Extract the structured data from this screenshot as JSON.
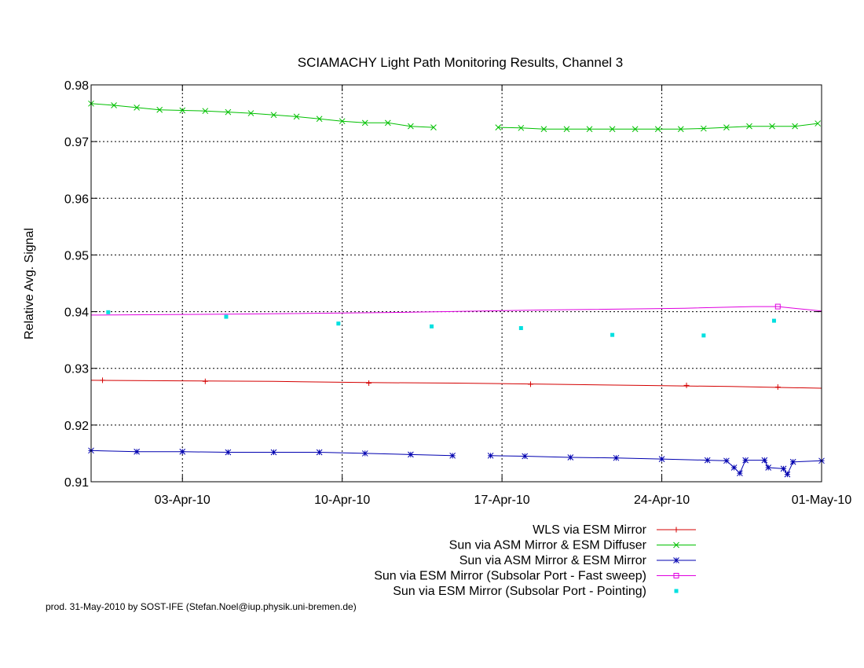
{
  "chart_data": {
    "type": "line",
    "title": "SCIAMACHY Light Path Monitoring Results, Channel 3",
    "xlabel": "",
    "ylabel": "Relative Avg. Signal",
    "x_type": "date",
    "xlim": [
      "2010-03-30T00:00",
      "2010-05-01T00:00"
    ],
    "ylim": [
      0.91,
      0.98
    ],
    "x_ticks": [
      {
        "date": "2010-04-03",
        "label": "03-Apr-10"
      },
      {
        "date": "2010-04-10",
        "label": "10-Apr-10"
      },
      {
        "date": "2010-04-17",
        "label": "17-Apr-10"
      },
      {
        "date": "2010-04-24",
        "label": "24-Apr-10"
      },
      {
        "date": "2010-05-01",
        "label": "01-May-10"
      }
    ],
    "y_ticks": [
      {
        "value": 0.91,
        "label": "0.91"
      },
      {
        "value": 0.92,
        "label": "0.92"
      },
      {
        "value": 0.93,
        "label": "0.93"
      },
      {
        "value": 0.94,
        "label": "0.94"
      },
      {
        "value": 0.95,
        "label": "0.95"
      },
      {
        "value": 0.96,
        "label": "0.96"
      },
      {
        "value": 0.97,
        "label": "0.97"
      },
      {
        "value": 0.98,
        "label": "0.98"
      }
    ],
    "grid": true,
    "legend_position": "below-right",
    "series": [
      {
        "name": "WLS via ESM Mirror",
        "color": "#d40000",
        "marker": "plus",
        "points": [
          [
            "2010-03-30T00:00",
            0.9279
          ],
          [
            "2010-04-03T00:00",
            0.9278
          ],
          [
            "2010-04-07T00:00",
            0.9277
          ],
          [
            "2010-04-11T00:00",
            0.9275
          ],
          [
            "2010-04-15T00:00",
            0.9274
          ],
          [
            "2010-04-19T00:00",
            0.9272
          ],
          [
            "2010-04-23T00:00",
            0.927
          ],
          [
            "2010-04-27T00:00",
            0.9268
          ],
          [
            "2010-05-01T00:00",
            0.9265
          ]
        ],
        "markers": [
          [
            "2010-03-30T12:00",
            0.9279
          ],
          [
            "2010-04-04T00:00",
            0.9277
          ],
          [
            "2010-04-11T04:00",
            0.9274
          ],
          [
            "2010-04-18T06:00",
            0.9272
          ],
          [
            "2010-04-25T02:00",
            0.927
          ],
          [
            "2010-04-29T02:00",
            0.9267
          ]
        ]
      },
      {
        "name": "Sun via ASM Mirror & ESM Diffuser",
        "color": "#00c000",
        "marker": "cross",
        "segments": [
          [
            [
              "2010-03-30T00:00",
              0.9767
            ],
            [
              "2010-03-31T00:00",
              0.9764
            ],
            [
              "2010-04-01T00:00",
              0.976
            ],
            [
              "2010-04-02T00:00",
              0.9756
            ],
            [
              "2010-04-03T00:00",
              0.9755
            ],
            [
              "2010-04-04T00:00",
              0.9754
            ],
            [
              "2010-04-05T00:00",
              0.9752
            ],
            [
              "2010-04-06T00:00",
              0.975
            ],
            [
              "2010-04-07T00:00",
              0.9747
            ],
            [
              "2010-04-08T00:00",
              0.9744
            ],
            [
              "2010-04-09T00:00",
              0.974
            ],
            [
              "2010-04-10T00:00",
              0.9736
            ],
            [
              "2010-04-11T00:00",
              0.9733
            ],
            [
              "2010-04-12T00:00",
              0.9733
            ],
            [
              "2010-04-13T00:00",
              0.9727
            ],
            [
              "2010-04-14T00:00",
              0.9725
            ]
          ],
          [
            [
              "2010-04-16T20:00",
              0.9725
            ],
            [
              "2010-04-17T20:00",
              0.9724
            ],
            [
              "2010-04-18T20:00",
              0.9722
            ],
            [
              "2010-04-19T20:00",
              0.9722
            ],
            [
              "2010-04-20T20:00",
              0.9722
            ],
            [
              "2010-04-21T20:00",
              0.9722
            ],
            [
              "2010-04-22T20:00",
              0.9722
            ],
            [
              "2010-04-23T20:00",
              0.9722
            ],
            [
              "2010-04-24T20:00",
              0.9722
            ],
            [
              "2010-04-25T20:00",
              0.9723
            ],
            [
              "2010-04-26T20:00",
              0.9725
            ],
            [
              "2010-04-27T20:00",
              0.9727
            ],
            [
              "2010-04-28T20:00",
              0.9727
            ],
            [
              "2010-04-29T20:00",
              0.9727
            ],
            [
              "2010-04-30T20:00",
              0.9732
            ]
          ]
        ]
      },
      {
        "name": "Sun via ASM Mirror & ESM Mirror",
        "color": "#0000b0",
        "marker": "star",
        "segments": [
          [
            [
              "2010-03-30T00:00",
              0.9155
            ],
            [
              "2010-04-01T00:00",
              0.9153
            ],
            [
              "2010-04-03T00:00",
              0.9153
            ],
            [
              "2010-04-05T00:00",
              0.9152
            ],
            [
              "2010-04-07T00:00",
              0.9152
            ],
            [
              "2010-04-09T00:00",
              0.9152
            ],
            [
              "2010-04-11T00:00",
              0.915
            ],
            [
              "2010-04-13T00:00",
              0.9148
            ],
            [
              "2010-04-14T20:00",
              0.9146
            ]
          ],
          [
            [
              "2010-04-16T12:00",
              0.9146
            ],
            [
              "2010-04-18T00:00",
              0.9145
            ],
            [
              "2010-04-20T00:00",
              0.9143
            ],
            [
              "2010-04-22T00:00",
              0.9142
            ],
            [
              "2010-04-24T00:00",
              0.914
            ],
            [
              "2010-04-26T00:00",
              0.9138
            ],
            [
              "2010-04-26T20:00",
              0.9137
            ],
            [
              "2010-04-27T04:00",
              0.9125
            ],
            [
              "2010-04-27T10:00",
              0.9115
            ],
            [
              "2010-04-27T16:00",
              0.9138
            ],
            [
              "2010-04-28T12:00",
              0.9138
            ],
            [
              "2010-04-28T16:00",
              0.9125
            ],
            [
              "2010-04-29T08:00",
              0.9123
            ],
            [
              "2010-04-29T12:00",
              0.9113
            ],
            [
              "2010-04-29T18:00",
              0.9135
            ],
            [
              "2010-05-01T00:00",
              0.9137
            ]
          ]
        ]
      },
      {
        "name": "Sun via ESM Mirror (Subsolar Port - Fast sweep)",
        "color": "#e000e0",
        "marker": "square",
        "points": [
          [
            "2010-03-30T00:00",
            0.9394
          ],
          [
            "2010-04-06T00:00",
            0.9396
          ],
          [
            "2010-04-13T00:00",
            0.9399
          ],
          [
            "2010-04-19T00:00",
            0.9403
          ],
          [
            "2010-04-25T00:00",
            0.9406
          ],
          [
            "2010-04-28T00:00",
            0.9409
          ],
          [
            "2010-04-29T02:00",
            0.9409
          ],
          [
            "2010-05-01T00:00",
            0.9401
          ]
        ],
        "markers": [
          [
            "2010-04-29T02:00",
            0.9409
          ]
        ]
      },
      {
        "name": "Sun via ESM Mirror (Subsolar Port - Pointing)",
        "color": "#00e0e0",
        "marker": "filled-square",
        "points_only": true,
        "points": [
          [
            "2010-03-30T18:00",
            0.9399
          ],
          [
            "2010-04-04T22:00",
            0.9391
          ],
          [
            "2010-04-09T20:00",
            0.9379
          ],
          [
            "2010-04-13T22:00",
            0.9374
          ],
          [
            "2010-04-17T20:00",
            0.9371
          ],
          [
            "2010-04-21T20:00",
            0.9359
          ],
          [
            "2010-04-25T20:00",
            0.9358
          ],
          [
            "2010-04-28T22:00",
            0.9384
          ]
        ]
      }
    ]
  },
  "footer": {
    "credit": "prod. 31-May-2010 by SOST-IFE (Stefan.Noel@iup.physik.uni-bremen.de)"
  }
}
